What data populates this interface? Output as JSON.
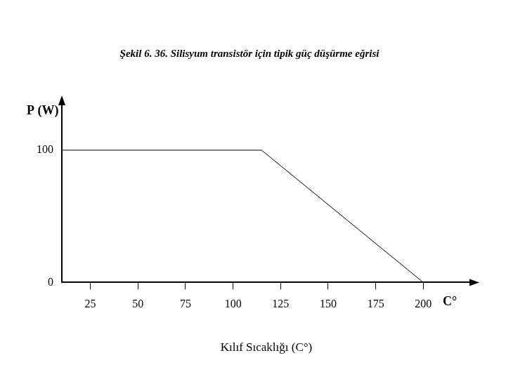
{
  "chart_data": {
    "type": "line",
    "title": "Şekil 6. 36. Silisyum transistör için tipik güç düşürme eğrisi",
    "ylabel": "P (W)",
    "xlabel": "Kılıf Sıcaklığı (C°)",
    "x_unit_label": "C°",
    "x": [
      10,
      115,
      200
    ],
    "values": [
      100,
      100,
      0
    ],
    "color": "#000000",
    "xlim": [
      10,
      225
    ],
    "xticks": [
      25,
      50,
      75,
      100,
      125,
      150,
      175,
      200
    ],
    "ylim": [
      0,
      135
    ],
    "yticks": [
      0,
      100
    ],
    "grid": false
  }
}
